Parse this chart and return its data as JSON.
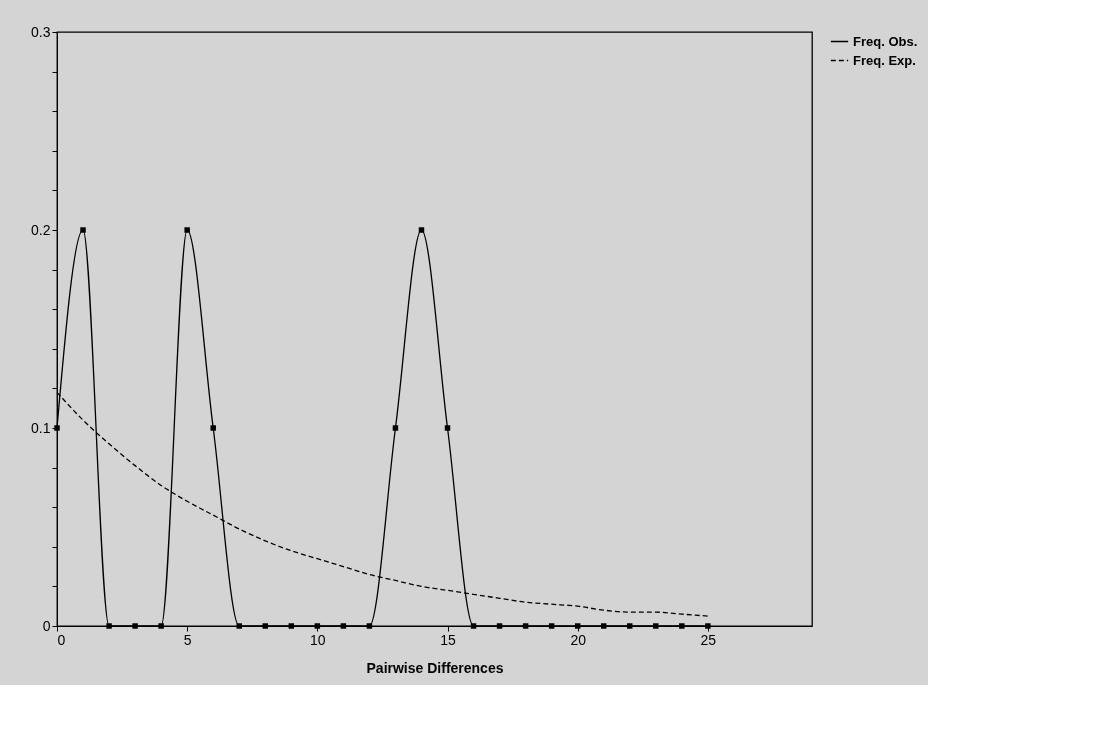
{
  "chart_data": {
    "type": "line",
    "xlabel": "Pairwise Differences",
    "x": [
      0,
      1,
      2,
      3,
      4,
      5,
      6,
      7,
      8,
      9,
      10,
      11,
      12,
      13,
      14,
      15,
      16,
      17,
      18,
      19,
      20,
      21,
      22,
      23,
      24,
      25
    ],
    "series": [
      {
        "name": "Freq. Obs.",
        "color": "#000000",
        "marker": "square",
        "line_style": "solid",
        "values": [
          0.1,
          0.2,
          0,
          0,
          0,
          0.2,
          0.1,
          0,
          0,
          0,
          0,
          0,
          0,
          0.1,
          0.2,
          0.1,
          0,
          0,
          0,
          0,
          0,
          0,
          0,
          0,
          0,
          0
        ]
      },
      {
        "name": "Freq. Exp.",
        "color": "#000000",
        "marker": "none",
        "line_style": "dashed",
        "values": [
          0.118,
          0.104,
          0.092,
          0.081,
          0.071,
          0.063,
          0.056,
          0.049,
          0.043,
          0.038,
          0.034,
          0.03,
          0.026,
          0.023,
          0.02,
          0.018,
          0.016,
          0.014,
          0.012,
          0.011,
          0.01,
          0.008,
          0.007,
          0.007,
          0.006,
          0.005
        ]
      }
    ],
    "xlim": [
      0,
      29
    ],
    "xticks": [
      0,
      5,
      10,
      15,
      20,
      25
    ],
    "ylim": [
      0,
      0.3
    ],
    "yticks": [
      0,
      {
        "value": 0.02,
        "label": null
      },
      {
        "value": 0.04,
        "label": null
      },
      {
        "value": 0.06,
        "label": null
      },
      {
        "value": 0.08,
        "label": null
      },
      0.1,
      {
        "value": 0.12,
        "label": null
      },
      {
        "value": 0.14,
        "label": null
      },
      {
        "value": 0.16,
        "label": null
      },
      {
        "value": 0.18,
        "label": null
      },
      0.2,
      {
        "value": 0.22,
        "label": null
      },
      {
        "value": 0.24,
        "label": null
      },
      {
        "value": 0.26,
        "label": null
      },
      {
        "value": 0.28,
        "label": null
      },
      0.3
    ],
    "grid": false,
    "legend": "top right"
  }
}
